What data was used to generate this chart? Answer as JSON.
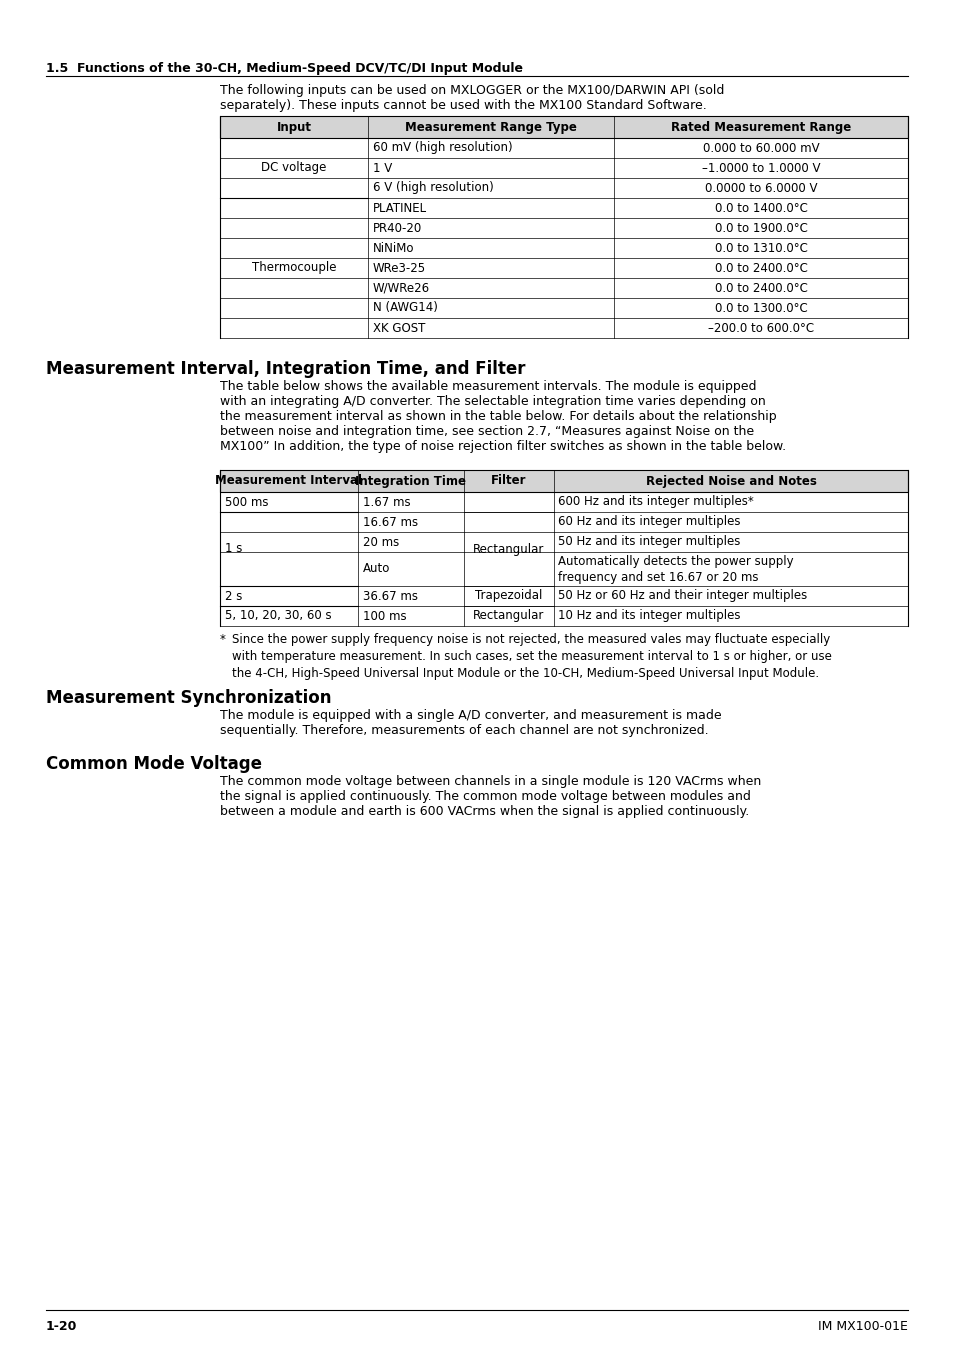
{
  "page_bg": "#ffffff",
  "section_title": "1.5  Functions of the 30-CH, Medium-Speed DCV/TC/DI Input Module",
  "intro_text": "The following inputs can be used on MXLOGGER or the MX100/DARWIN API (sold\nseparately). These inputs cannot be used with the MX100 Standard Software.",
  "table1_headers": [
    "Input",
    "Measurement Range Type",
    "Rated Measurement Range"
  ],
  "table1_rows": [
    [
      "DC voltage",
      "60 mV (high resolution)",
      "0.000 to 60.000 mV"
    ],
    [
      "",
      "1 V",
      "–1.0000 to 1.0000 V"
    ],
    [
      "",
      "6 V (high resolution)",
      "0.0000 to 6.0000 V"
    ],
    [
      "Thermocouple",
      "PLATINEL",
      "0.0 to 1400.0°C"
    ],
    [
      "",
      "PR40-20",
      "0.0 to 1900.0°C"
    ],
    [
      "",
      "NiNiMo",
      "0.0 to 1310.0°C"
    ],
    [
      "",
      "WRe3-25",
      "0.0 to 2400.0°C"
    ],
    [
      "",
      "W/WRe26",
      "0.0 to 2400.0°C"
    ],
    [
      "",
      "N (AWG14)",
      "0.0 to 1300.0°C"
    ],
    [
      "",
      "XK GOST",
      "–200.0 to 600.0°C"
    ]
  ],
  "section2_title": "Measurement Interval, Integration Time, and Filter",
  "section2_intro": "The table below shows the available measurement intervals. The module is equipped\nwith an integrating A/D converter. The selectable integration time varies depending on\nthe measurement interval as shown in the table below. For details about the relationship\nbetween noise and integration time, see section 2.7, “Measures against Noise on the\nMX100” In addition, the type of noise rejection filter switches as shown in the table below.",
  "table2_headers": [
    "Measurement Interval",
    "Integration Time",
    "Filter",
    "Rejected Noise and Notes"
  ],
  "table2_rows": [
    [
      "500 ms",
      "1.67 ms",
      "",
      "600 Hz and its integer multiples*"
    ],
    [
      "1 s",
      "16.67 ms",
      "Rectangular",
      "60 Hz and its integer multiples"
    ],
    [
      "",
      "20 ms",
      "",
      "50 Hz and its integer multiples"
    ],
    [
      "",
      "Auto",
      "",
      "Automatically detects the power supply\nfrequency and set 16.67 or 20 ms"
    ],
    [
      "2 s",
      "36.67 ms",
      "Trapezoidal",
      "50 Hz or 60 Hz and their integer multiples"
    ],
    [
      "5, 10, 20, 30, 60 s",
      "100 ms",
      "Rectangular",
      "10 Hz and its integer multiples"
    ]
  ],
  "footnote_star": "*",
  "footnote_text": "Since the power supply frequency noise is not rejected, the measured vales may fluctuate especially\nwith temperature measurement. In such cases, set the measurement interval to 1 s or higher, or use\nthe 4-CH, High-Speed Universal Input Module or the 10-CH, Medium-Speed Universal Input Module.",
  "section3_title": "Measurement Synchronization",
  "section3_text": "The module is equipped with a single A/D converter, and measurement is made\nsequentially. Therefore, measurements of each channel are not synchronized.",
  "section4_title": "Common Mode Voltage",
  "section4_text": "The common mode voltage between channels in a single module is 120 VACrms when\nthe signal is applied continuously. The common mode voltage between modules and\nbetween a module and earth is 600 VACrms when the signal is applied continuously.",
  "footer_left": "1-20",
  "footer_right": "IM MX100-01E"
}
